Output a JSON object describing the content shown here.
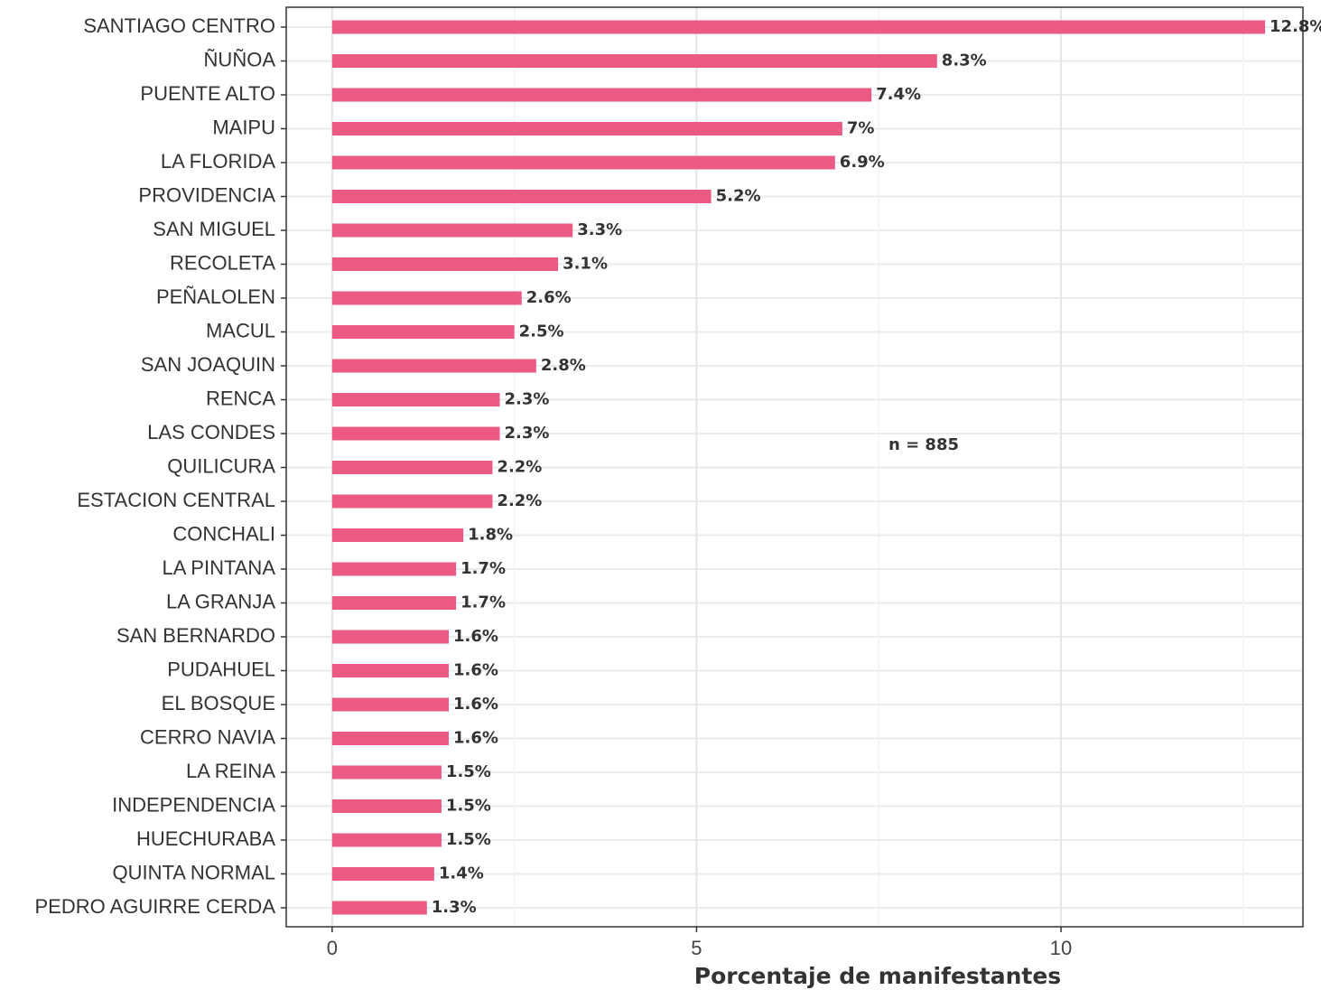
{
  "chart_data": {
    "type": "bar",
    "orientation": "horizontal",
    "x_label": "Porcentaje de manifestantes",
    "annotation": "n = 885",
    "categories": [
      "SANTIAGO CENTRO",
      "ÑUÑOA",
      "PUENTE ALTO",
      "MAIPU",
      "LA FLORIDA",
      "PROVIDENCIA",
      "SAN MIGUEL",
      "RECOLETA",
      "PEÑALOLEN",
      "MACUL",
      "SAN JOAQUIN",
      "RENCA",
      "LAS CONDES",
      "QUILICURA",
      "ESTACION CENTRAL",
      "CONCHALI",
      "LA PINTANA",
      "LA GRANJA",
      "SAN BERNARDO",
      "PUDAHUEL",
      "EL BOSQUE",
      "CERRO NAVIA",
      "LA REINA",
      "INDEPENDENCIA",
      "HUECHURABA",
      "QUINTA NORMAL",
      "PEDRO AGUIRRE CERDA"
    ],
    "values": [
      12.8,
      8.3,
      7.4,
      7,
      6.9,
      5.2,
      3.3,
      3.1,
      2.6,
      2.5,
      2.8,
      2.3,
      2.3,
      2.2,
      2.2,
      1.8,
      1.7,
      1.7,
      1.6,
      1.6,
      1.6,
      1.6,
      1.5,
      1.5,
      1.5,
      1.4,
      1.3
    ],
    "value_labels": [
      "12.8%",
      "8.3%",
      "7.4%",
      "7%",
      "6.9%",
      "5.2%",
      "3.3%",
      "3.1%",
      "2.6%",
      "2.5%",
      "2.8%",
      "2.3%",
      "2.3%",
      "2.2%",
      "2.2%",
      "1.8%",
      "1.7%",
      "1.7%",
      "1.6%",
      "1.6%",
      "1.6%",
      "1.6%",
      "1.5%",
      "1.5%",
      "1.5%",
      "1.4%",
      "1.3%"
    ],
    "color": "#ea5a83",
    "xlim": [
      -0.63,
      13.32
    ],
    "xticks": [
      0,
      5,
      10
    ],
    "xminorticks": [
      2.5,
      7.5,
      12.5
    ],
    "grid": true
  }
}
